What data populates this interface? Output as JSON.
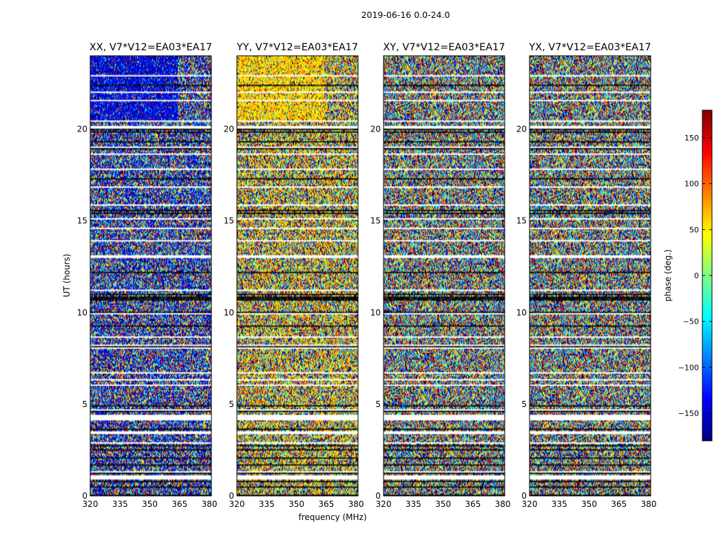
{
  "chart_data": {
    "type": "heatmap",
    "title": "2019-06-16 0.0-24.0",
    "ylabel": "UT (hours)",
    "xlabel": "frequency (MHz)",
    "panels": [
      {
        "title": "XX, V7*V12=EA03*EA17",
        "bias": -140,
        "bias_top": 0.26
      },
      {
        "title": "YY, V7*V12=EA03*EA17",
        "bias": 60,
        "bias_top": 0.26
      },
      {
        "title": "XY, V7*V12=EA03*EA17",
        "bias": 0,
        "bias_top": 0
      },
      {
        "title": "YX, V7*V12=EA03*EA17",
        "bias": 0,
        "bias_top": 0
      }
    ],
    "xlim": [
      320,
      381
    ],
    "ylim": [
      0,
      24
    ],
    "xticks": [
      320,
      335,
      350,
      365,
      380
    ],
    "xtick_labels": [
      "320",
      "335",
      "350",
      "365",
      "380"
    ],
    "yticks": [
      0,
      5,
      10,
      15,
      20
    ],
    "ytick_labels": [
      "0",
      "5",
      "10",
      "15",
      "20"
    ],
    "colorbar": {
      "label": "phase (deg.)",
      "range": [
        -180,
        180
      ],
      "ticks": [
        -150,
        -100,
        -50,
        0,
        50,
        100,
        150
      ],
      "tick_labels": [
        "−150",
        "−100",
        "−50",
        "0",
        "50",
        "100",
        "150"
      ],
      "colormap": "jet"
    },
    "flagged_ut_ranges": [
      [
        0.9,
        1.1
      ],
      [
        2.85,
        2.95
      ],
      [
        3.4,
        3.5
      ],
      [
        4.1,
        4.45
      ],
      [
        6.0,
        6.05
      ],
      [
        8.0,
        8.1
      ],
      [
        8.6,
        8.7
      ],
      [
        9.9,
        9.95
      ],
      [
        13.0,
        13.15
      ],
      [
        15.05,
        15.15
      ],
      [
        15.8,
        15.9
      ],
      [
        16.25,
        16.3
      ],
      [
        20.0,
        20.15
      ],
      [
        20.4,
        20.45
      ],
      [
        21.5,
        21.6
      ],
      [
        22.0,
        22.05
      ],
      [
        22.9,
        22.95
      ]
    ],
    "dark_ut_ranges": [
      [
        0.75,
        0.8
      ],
      [
        1.2,
        1.25
      ],
      [
        2.45,
        2.55
      ],
      [
        2.7,
        2.75
      ],
      [
        4.6,
        4.65
      ],
      [
        9.25,
        9.3
      ],
      [
        10.65,
        10.75
      ],
      [
        11.45,
        11.5
      ],
      [
        17.25,
        17.3
      ],
      [
        18.9,
        18.95
      ],
      [
        19.3,
        19.35
      ],
      [
        21.2,
        21.25
      ]
    ]
  }
}
